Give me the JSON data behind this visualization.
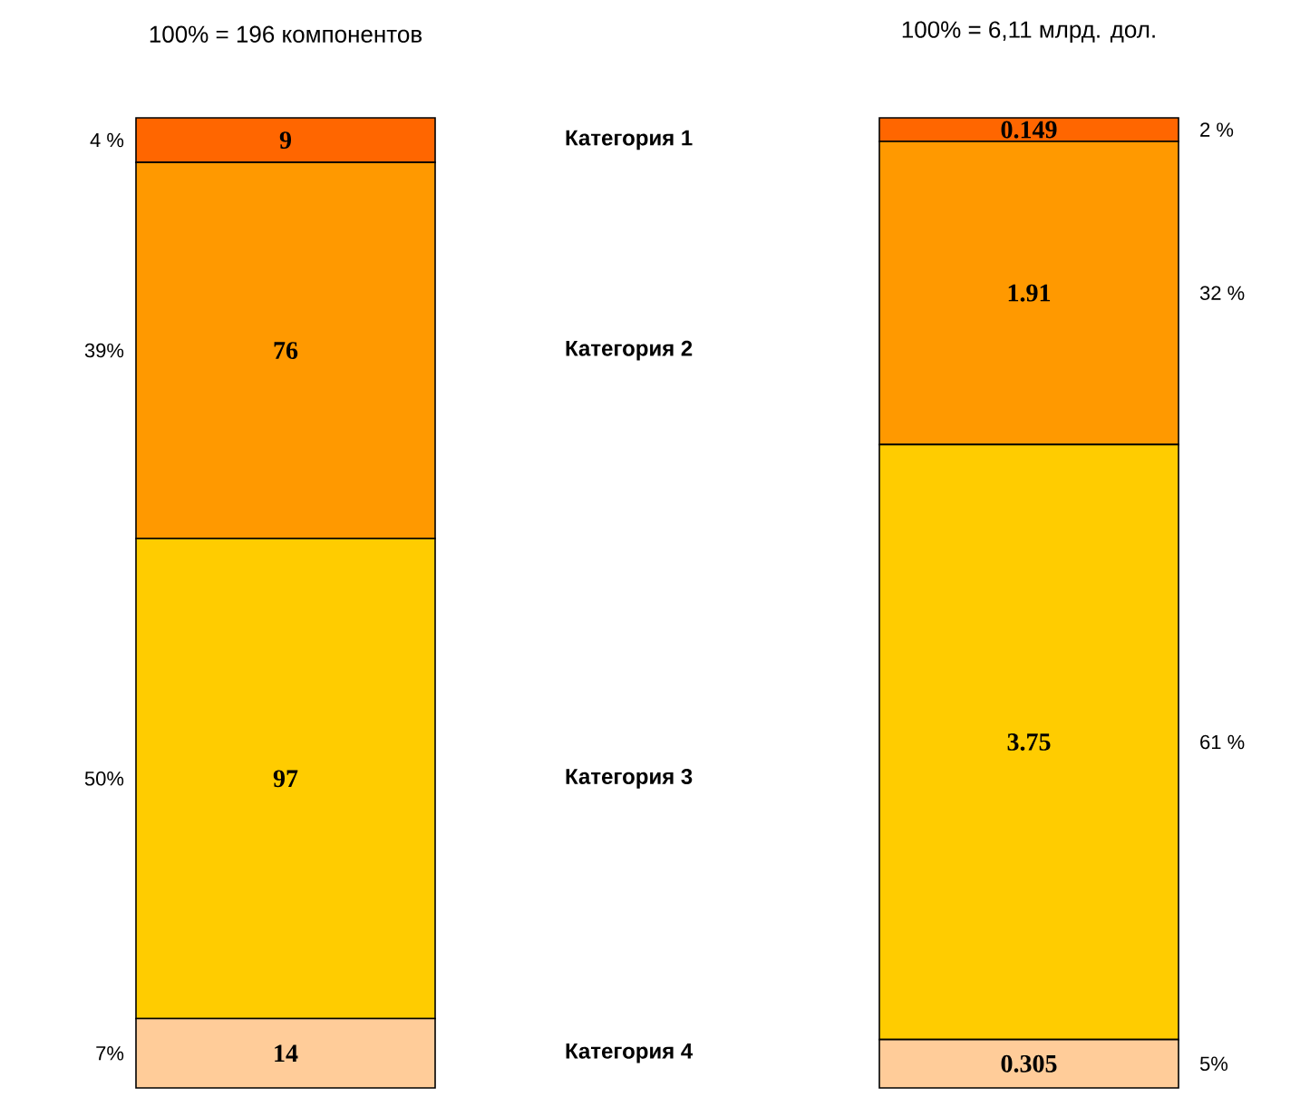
{
  "chart_data": [
    {
      "type": "bar",
      "stacked": true,
      "title": "100% = 196 компонентов",
      "categories": [
        null
      ],
      "data_labels": true,
      "series": [
        {
          "name": "Категория 4",
          "color": "#ffcc99",
          "values": [
            14
          ]
        },
        {
          "name": "Категория 3",
          "color": "#ffcc00",
          "values": [
            97
          ]
        },
        {
          "name": "Категория 2",
          "color": "#ff9900",
          "values": [
            76
          ]
        },
        {
          "name": "Категория 1",
          "color": "#ff6600",
          "values": [
            9
          ]
        }
      ],
      "annotations": [
        "7%",
        "50%",
        "39%",
        "4 %"
      ]
    },
    {
      "type": "bar",
      "stacked": true,
      "title": "100% = 6,11 млрд. дол.",
      "categories": [
        null
      ],
      "data_labels": true,
      "series": [
        {
          "color": "#ffcc99",
          "values": [
            0.305
          ]
        },
        {
          "color": "#ffcc00",
          "values": [
            3.75
          ]
        },
        {
          "color": "#ff9900",
          "values": [
            1.91
          ]
        },
        {
          "color": "#ff6600",
          "values": [
            0.149
          ]
        }
      ],
      "annotations": [
        "5%",
        "61 %",
        "32 %",
        "2 %"
      ]
    }
  ]
}
